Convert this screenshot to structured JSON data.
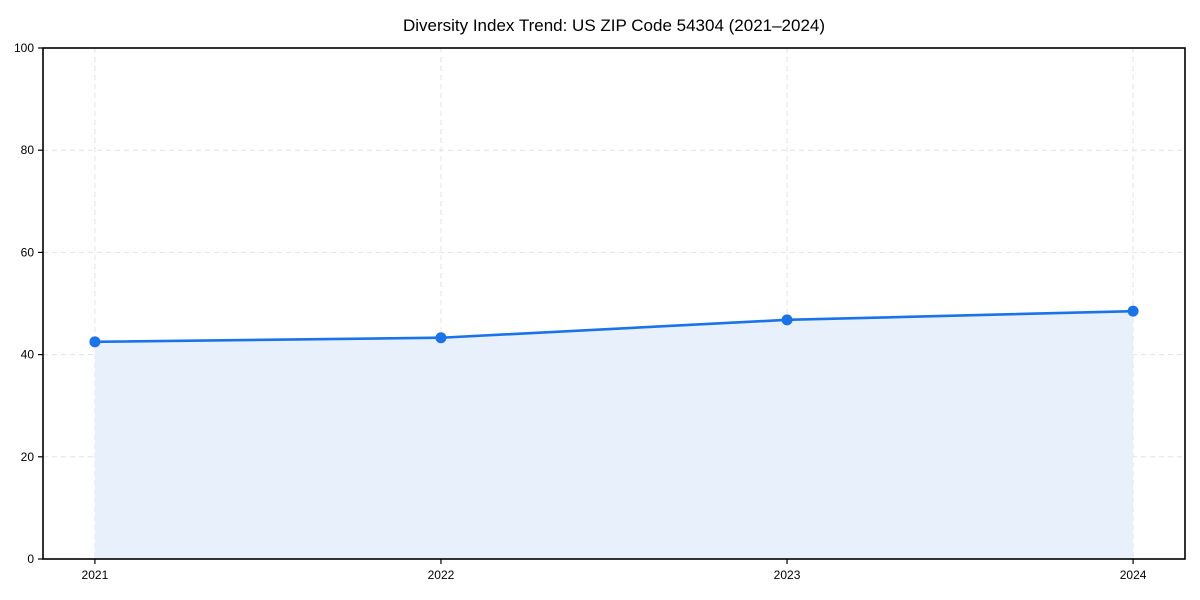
{
  "chart_data": {
    "type": "area",
    "title": "Diversity Index Trend: US ZIP Code 54304 (2021–2024)",
    "categories": [
      "2021",
      "2022",
      "2023",
      "2024"
    ],
    "x": [
      2021,
      2022,
      2023,
      2024
    ],
    "series": [
      {
        "name": "Diversity Index",
        "values": [
          42.5,
          43.3,
          46.8,
          48.5
        ]
      }
    ],
    "xlabel": "",
    "ylabel": "",
    "ylim": [
      0,
      100
    ],
    "yticks": [
      0,
      20,
      40,
      60,
      80,
      100
    ],
    "ytick_labels": [
      "0",
      "20",
      "40",
      "60",
      "80",
      "100"
    ],
    "grid": true,
    "grid_style": "dashed",
    "legend_position": "none",
    "line_color": "#1A73E8",
    "marker_color": "#1A73E8",
    "fill_color": "#E8F0FC",
    "gridline_color": "#E3E3E3",
    "spine_color": "#000000",
    "background_color": "#FFFFFF"
  }
}
